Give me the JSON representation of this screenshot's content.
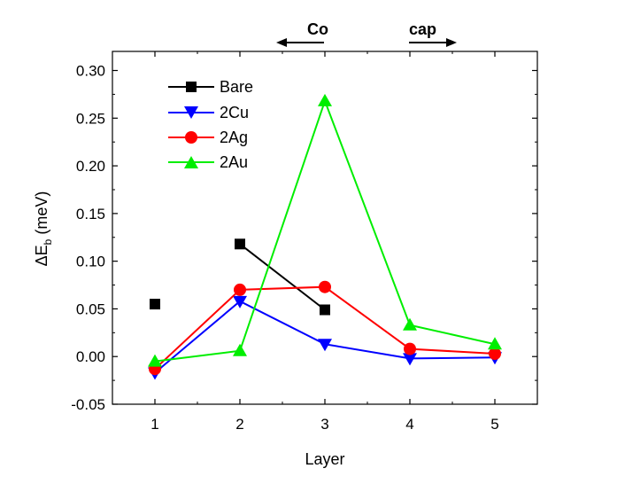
{
  "chart_data": {
    "type": "line",
    "title": "",
    "xlabel": "Layer",
    "ylabel": {
      "main": "ΔE",
      "sub": "b",
      "unit": " (meV)"
    },
    "x": [
      1,
      2,
      3,
      4,
      5
    ],
    "xlim": [
      0.5,
      5.5
    ],
    "ylim": [
      -0.05,
      0.32
    ],
    "xticks": [
      1,
      2,
      3,
      4,
      5
    ],
    "yticks": [
      -0.05,
      0.0,
      0.05,
      0.1,
      0.15,
      0.2,
      0.25,
      0.3
    ],
    "ytick_labels": [
      "-0.05",
      "0.00",
      "0.05",
      "0.10",
      "0.15",
      "0.20",
      "0.25",
      "0.30"
    ],
    "legend_position": "top-left",
    "series": [
      {
        "name": "Bare",
        "color": "#000000",
        "marker": "square",
        "x": [
          1,
          2,
          3
        ],
        "values": [
          0.055,
          0.118,
          0.049
        ],
        "connect": [
          [
            2,
            3
          ]
        ]
      },
      {
        "name": "2Cu",
        "color": "#0000ff",
        "marker": "triangle-down",
        "x": [
          1,
          2,
          3,
          4,
          5
        ],
        "values": [
          -0.017,
          0.058,
          0.013,
          -0.002,
          -0.001
        ],
        "connect": "all"
      },
      {
        "name": "2Ag",
        "color": "#ff0000",
        "marker": "circle",
        "x": [
          1,
          2,
          3,
          4,
          5
        ],
        "values": [
          -0.013,
          0.07,
          0.073,
          0.008,
          0.003
        ],
        "connect": "all"
      },
      {
        "name": "2Au",
        "color": "#00ee00",
        "marker": "triangle-up",
        "x": [
          1,
          2,
          3,
          4,
          5
        ],
        "values": [
          -0.005,
          0.006,
          0.268,
          0.033,
          0.013
        ],
        "connect": "all"
      }
    ],
    "annotations": [
      {
        "text": "Co",
        "arrow": "left"
      },
      {
        "text": "cap",
        "arrow": "right"
      }
    ]
  }
}
